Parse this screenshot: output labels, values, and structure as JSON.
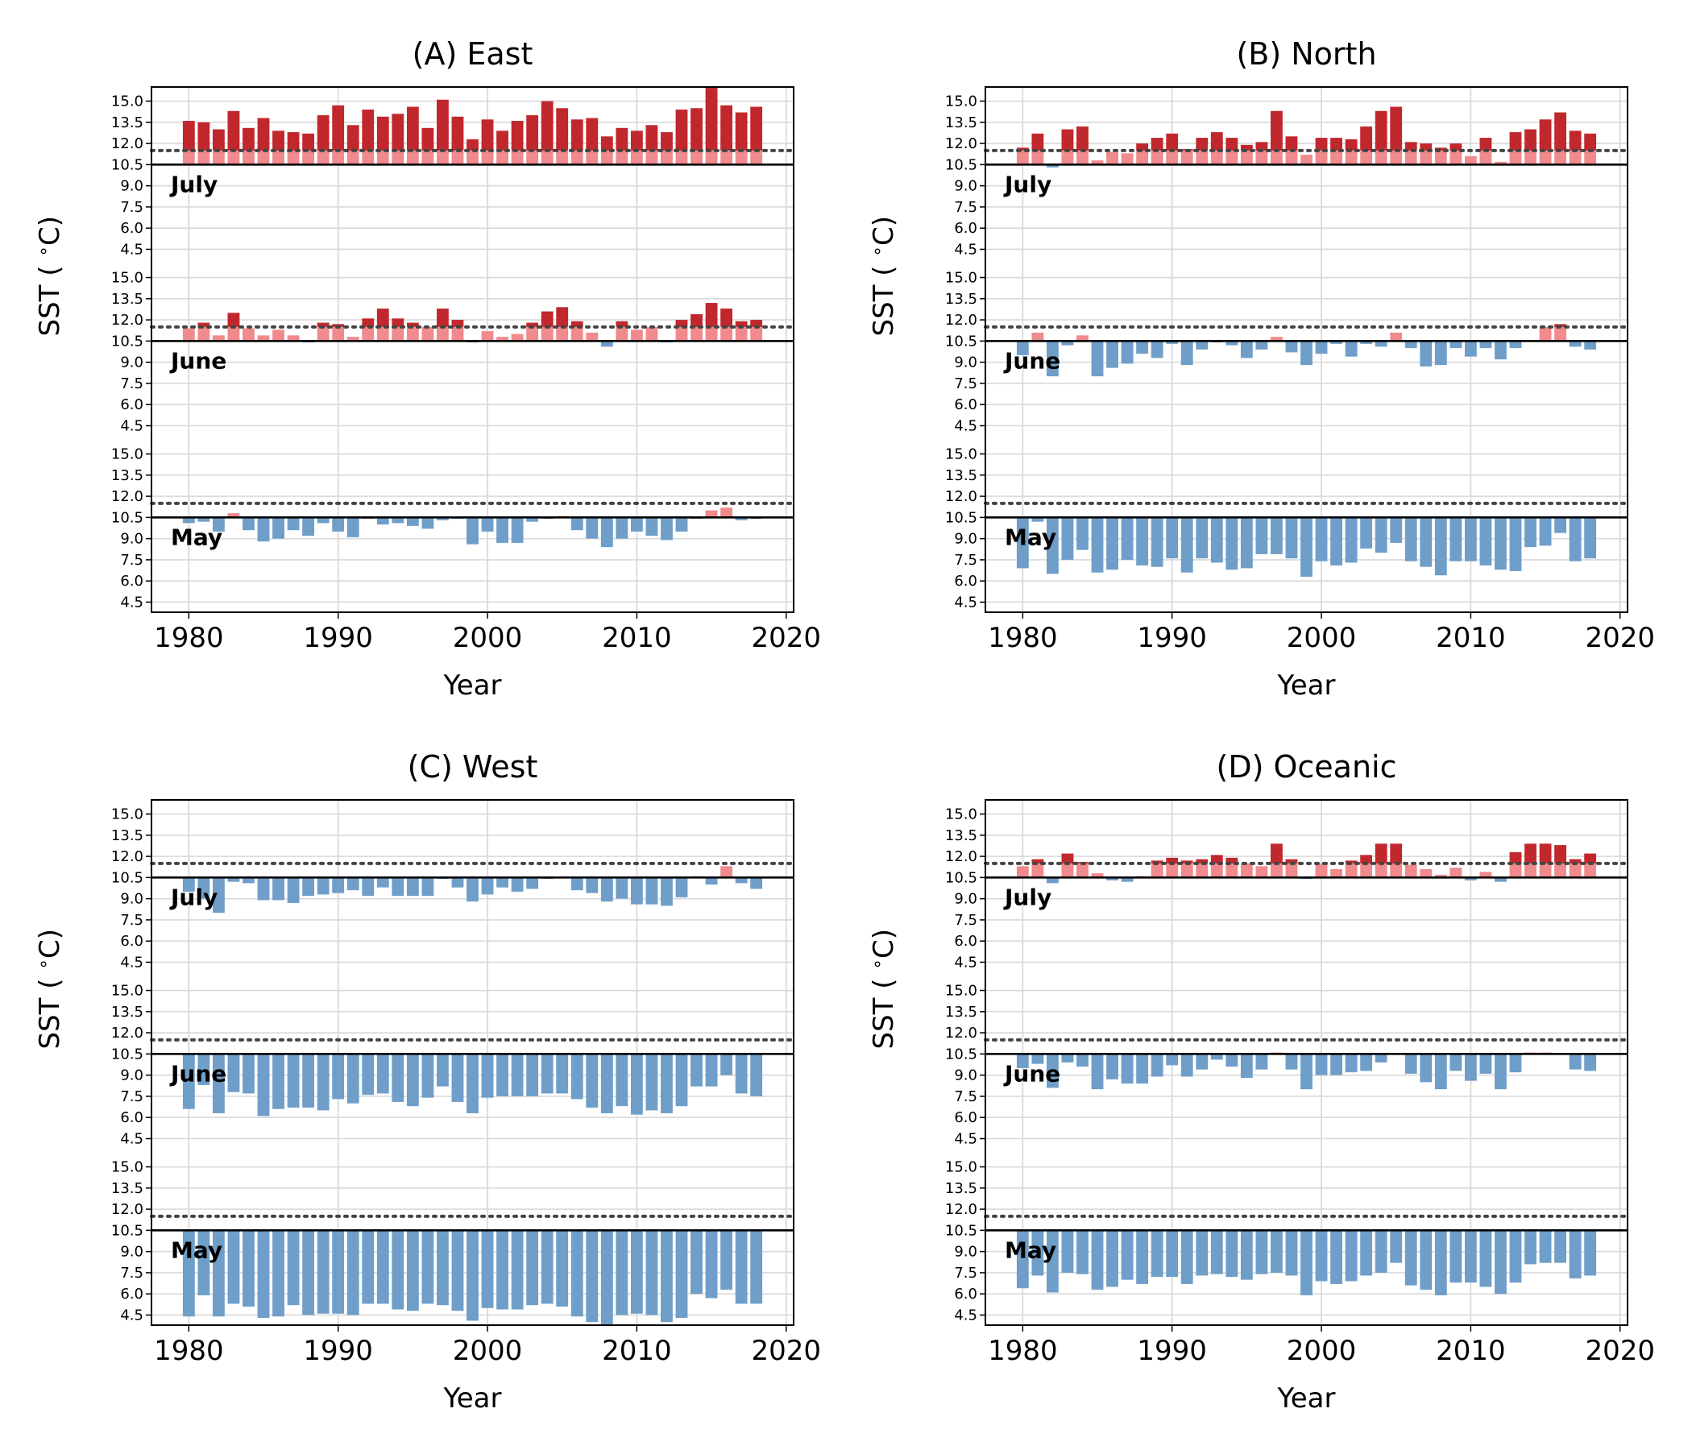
{
  "chart_data": [
    {
      "type": "bar",
      "title": "(A) East",
      "xlabel": "Year",
      "ylabel": "SST ( $^\\circ$C)",
      "x_ticks": [
        "1980",
        "1990",
        "2000",
        "2010",
        "2020"
      ],
      "xlim": [
        1977.5,
        2020.5
      ],
      "y_ticks": [
        "4.5",
        "6.0",
        "7.5",
        "9.0",
        "10.5",
        "12.0",
        "13.5",
        "15.0"
      ],
      "ylim_each_band": [
        3.5,
        16.0
      ],
      "baseline": 10.5,
      "threshold": 11.5,
      "grid": true,
      "years": [
        1980,
        1981,
        1982,
        1983,
        1984,
        1985,
        1986,
        1987,
        1988,
        1989,
        1990,
        1991,
        1992,
        1993,
        1994,
        1995,
        1996,
        1997,
        1998,
        1999,
        2000,
        2001,
        2002,
        2003,
        2004,
        2005,
        2006,
        2007,
        2008,
        2009,
        2010,
        2011,
        2012,
        2013,
        2014,
        2015,
        2016,
        2017,
        2018
      ],
      "months": [
        {
          "label": "July",
          "values": [
            13.6,
            13.5,
            13.0,
            14.3,
            13.1,
            13.8,
            12.9,
            12.8,
            12.7,
            14.0,
            14.7,
            13.3,
            14.4,
            13.9,
            14.1,
            14.6,
            13.1,
            15.1,
            13.9,
            12.3,
            13.7,
            12.9,
            13.6,
            14.0,
            15.0,
            14.5,
            13.7,
            13.8,
            12.5,
            13.1,
            12.9,
            13.3,
            12.8,
            14.4,
            14.5,
            16.0,
            14.7,
            14.2,
            14.6
          ]
        },
        {
          "label": "June",
          "values": [
            11.4,
            11.8,
            10.9,
            12.5,
            11.4,
            10.9,
            11.3,
            10.9,
            10.4,
            11.8,
            11.7,
            10.8,
            12.1,
            12.8,
            12.1,
            11.8,
            11.5,
            12.8,
            12.0,
            10.4,
            11.2,
            10.8,
            11.0,
            11.8,
            12.6,
            12.9,
            11.9,
            11.1,
            10.1,
            11.9,
            11.3,
            11.5,
            10.4,
            12.0,
            12.4,
            13.2,
            12.8,
            11.9,
            12.0
          ]
        },
        {
          "label": "May",
          "values": [
            10.1,
            10.2,
            9.5,
            10.8,
            9.6,
            8.8,
            9.0,
            9.6,
            9.2,
            10.1,
            9.5,
            9.1,
            10.4,
            10.0,
            10.1,
            9.9,
            9.7,
            10.3,
            10.4,
            8.6,
            9.5,
            8.7,
            8.7,
            10.2,
            10.4,
            10.6,
            9.6,
            9.0,
            8.4,
            9.0,
            9.5,
            9.2,
            8.9,
            9.5,
            10.4,
            11.0,
            11.2,
            10.3,
            10.4
          ]
        }
      ]
    },
    {
      "type": "bar",
      "title": "(B) North",
      "xlabel": "Year",
      "ylabel": "SST ( $^\\circ$C)",
      "x_ticks": [
        "1980",
        "1990",
        "2000",
        "2010",
        "2020"
      ],
      "xlim": [
        1977.5,
        2020.5
      ],
      "y_ticks": [
        "4.5",
        "6.0",
        "7.5",
        "9.0",
        "10.5",
        "12.0",
        "13.5",
        "15.0"
      ],
      "ylim_each_band": [
        3.5,
        16.0
      ],
      "baseline": 10.5,
      "threshold": 11.5,
      "grid": true,
      "years": [
        1980,
        1981,
        1982,
        1983,
        1984,
        1985,
        1986,
        1987,
        1988,
        1989,
        1990,
        1991,
        1992,
        1993,
        1994,
        1995,
        1996,
        1997,
        1998,
        1999,
        2000,
        2001,
        2002,
        2003,
        2004,
        2005,
        2006,
        2007,
        2008,
        2009,
        2010,
        2011,
        2012,
        2013,
        2014,
        2015,
        2016,
        2017,
        2018
      ],
      "months": [
        {
          "label": "July",
          "values": [
            11.7,
            12.7,
            10.3,
            13.0,
            13.2,
            10.8,
            11.4,
            11.3,
            12.0,
            12.4,
            12.7,
            11.6,
            12.4,
            12.8,
            12.4,
            11.9,
            12.1,
            14.3,
            12.5,
            11.2,
            12.4,
            12.4,
            12.3,
            13.2,
            14.3,
            14.6,
            12.1,
            12.0,
            11.7,
            12.0,
            11.1,
            12.4,
            10.7,
            12.8,
            13.0,
            13.7,
            14.2,
            12.9,
            12.7
          ]
        },
        {
          "label": "June",
          "values": [
            9.5,
            11.1,
            8.0,
            10.2,
            10.9,
            8.0,
            8.6,
            8.9,
            9.6,
            9.3,
            10.3,
            8.8,
            9.9,
            10.4,
            10.2,
            9.3,
            9.9,
            10.8,
            9.7,
            8.8,
            9.6,
            10.3,
            9.4,
            10.3,
            10.1,
            11.1,
            10.0,
            8.7,
            8.8,
            10.0,
            9.4,
            10.0,
            9.2,
            10.0,
            10.5,
            11.5,
            11.7,
            10.1,
            9.9
          ]
        },
        {
          "label": "May",
          "values": [
            6.9,
            10.2,
            6.5,
            7.5,
            8.2,
            6.6,
            6.8,
            7.5,
            7.1,
            7.0,
            7.6,
            6.6,
            7.6,
            7.3,
            6.8,
            6.9,
            7.9,
            7.9,
            7.6,
            6.3,
            7.4,
            7.1,
            7.3,
            8.3,
            8.0,
            8.7,
            7.4,
            7.0,
            6.4,
            7.4,
            7.4,
            7.1,
            6.8,
            6.7,
            8.4,
            8.5,
            9.4,
            7.4,
            7.6
          ]
        }
      ]
    },
    {
      "type": "bar",
      "title": "(C) West",
      "xlabel": "Year",
      "ylabel": "SST ( $^\\circ$C)",
      "x_ticks": [
        "1980",
        "1990",
        "2000",
        "2010",
        "2020"
      ],
      "xlim": [
        1977.5,
        2020.5
      ],
      "y_ticks": [
        "4.5",
        "6.0",
        "7.5",
        "9.0",
        "10.5",
        "12.0",
        "13.5",
        "15.0"
      ],
      "ylim_each_band": [
        3.5,
        16.0
      ],
      "baseline": 10.5,
      "threshold": 11.5,
      "grid": true,
      "years": [
        1980,
        1981,
        1982,
        1983,
        1984,
        1985,
        1986,
        1987,
        1988,
        1989,
        1990,
        1991,
        1992,
        1993,
        1994,
        1995,
        1996,
        1997,
        1998,
        1999,
        2000,
        2001,
        2002,
        2003,
        2004,
        2005,
        2006,
        2007,
        2008,
        2009,
        2010,
        2011,
        2012,
        2013,
        2014,
        2015,
        2016,
        2017,
        2018
      ],
      "months": [
        {
          "label": "July",
          "values": [
            9.5,
            9.0,
            8.0,
            10.2,
            10.1,
            8.9,
            8.9,
            8.7,
            9.2,
            9.3,
            9.4,
            9.6,
            9.2,
            9.8,
            9.2,
            9.2,
            9.2,
            10.4,
            9.8,
            8.8,
            9.3,
            9.8,
            9.5,
            9.7,
            10.4,
            10.5,
            9.6,
            9.4,
            8.8,
            9.0,
            8.6,
            8.6,
            8.5,
            9.1,
            10.6,
            10.0,
            11.3,
            10.1,
            9.7
          ]
        },
        {
          "label": "June",
          "values": [
            6.6,
            8.3,
            6.3,
            7.8,
            7.7,
            6.1,
            6.6,
            6.7,
            6.7,
            6.5,
            7.3,
            7.0,
            7.6,
            7.7,
            7.1,
            6.8,
            7.4,
            8.2,
            7.1,
            6.3,
            7.4,
            7.5,
            7.5,
            7.5,
            7.7,
            7.7,
            7.3,
            6.7,
            6.3,
            6.8,
            6.2,
            6.5,
            6.3,
            6.8,
            8.2,
            8.2,
            9.0,
            7.7,
            7.5
          ]
        },
        {
          "label": "May",
          "values": [
            4.4,
            5.9,
            4.4,
            5.3,
            5.1,
            4.3,
            4.4,
            5.2,
            4.5,
            4.6,
            4.6,
            4.5,
            5.3,
            5.3,
            4.9,
            4.8,
            5.3,
            5.2,
            4.8,
            4.1,
            5.0,
            4.9,
            4.9,
            5.2,
            5.3,
            5.1,
            4.4,
            4.0,
            3.8,
            4.5,
            4.6,
            4.5,
            4.0,
            4.3,
            6.0,
            5.7,
            6.3,
            5.3,
            5.3
          ]
        }
      ]
    },
    {
      "type": "bar",
      "title": "(D) Oceanic",
      "xlabel": "Year",
      "ylabel": "SST ( $^\\circ$C)",
      "x_ticks": [
        "1980",
        "1990",
        "2000",
        "2010",
        "2020"
      ],
      "xlim": [
        1977.5,
        2020.5
      ],
      "y_ticks": [
        "4.5",
        "6.0",
        "7.5",
        "9.0",
        "10.5",
        "12.0",
        "13.5",
        "15.0"
      ],
      "ylim_each_band": [
        3.5,
        16.0
      ],
      "baseline": 10.5,
      "threshold": 11.5,
      "grid": true,
      "years": [
        1980,
        1981,
        1982,
        1983,
        1984,
        1985,
        1986,
        1987,
        1988,
        1989,
        1990,
        1991,
        1992,
        1993,
        1994,
        1995,
        1996,
        1997,
        1998,
        1999,
        2000,
        2001,
        2002,
        2003,
        2004,
        2005,
        2006,
        2007,
        2008,
        2009,
        2010,
        2011,
        2012,
        2013,
        2014,
        2015,
        2016,
        2017,
        2018
      ],
      "months": [
        {
          "label": "July",
          "values": [
            11.3,
            11.8,
            10.1,
            12.2,
            11.6,
            10.8,
            10.3,
            10.2,
            10.6,
            11.7,
            11.9,
            11.7,
            11.8,
            12.1,
            11.9,
            11.5,
            11.3,
            12.9,
            11.8,
            10.4,
            11.5,
            11.1,
            11.7,
            12.1,
            12.9,
            12.9,
            11.4,
            11.1,
            10.7,
            11.2,
            10.3,
            10.9,
            10.2,
            12.3,
            12.9,
            12.9,
            12.8,
            11.8,
            12.2
          ]
        },
        {
          "label": "June",
          "values": [
            9.5,
            9.8,
            8.1,
            9.9,
            9.6,
            8.0,
            8.7,
            8.4,
            8.4,
            8.9,
            9.7,
            8.9,
            9.4,
            10.1,
            9.6,
            8.8,
            9.4,
            10.6,
            9.4,
            8.0,
            9.0,
            9.0,
            9.2,
            9.3,
            9.9,
            10.5,
            9.1,
            8.5,
            8.0,
            9.3,
            8.6,
            9.1,
            8.0,
            9.2,
            10.6,
            10.6,
            10.5,
            9.4,
            9.3
          ]
        },
        {
          "label": "May",
          "values": [
            6.4,
            7.3,
            6.1,
            7.5,
            7.4,
            6.3,
            6.5,
            7.0,
            6.7,
            7.2,
            7.2,
            6.7,
            7.3,
            7.4,
            7.2,
            7.0,
            7.4,
            7.5,
            7.3,
            5.9,
            6.9,
            6.7,
            6.9,
            7.3,
            7.5,
            8.2,
            6.6,
            6.3,
            5.9,
            6.8,
            6.8,
            6.5,
            6.0,
            6.8,
            8.1,
            8.2,
            8.2,
            7.1,
            7.3
          ]
        }
      ]
    }
  ],
  "colors": {
    "above_threshold": "#c0282d",
    "between_baseline_threshold": "#f08a8c",
    "below_baseline": "#6f9ec9",
    "gridline": "#d9d9d9",
    "threshold_line": "#444444",
    "baseline_line": "#000000"
  }
}
